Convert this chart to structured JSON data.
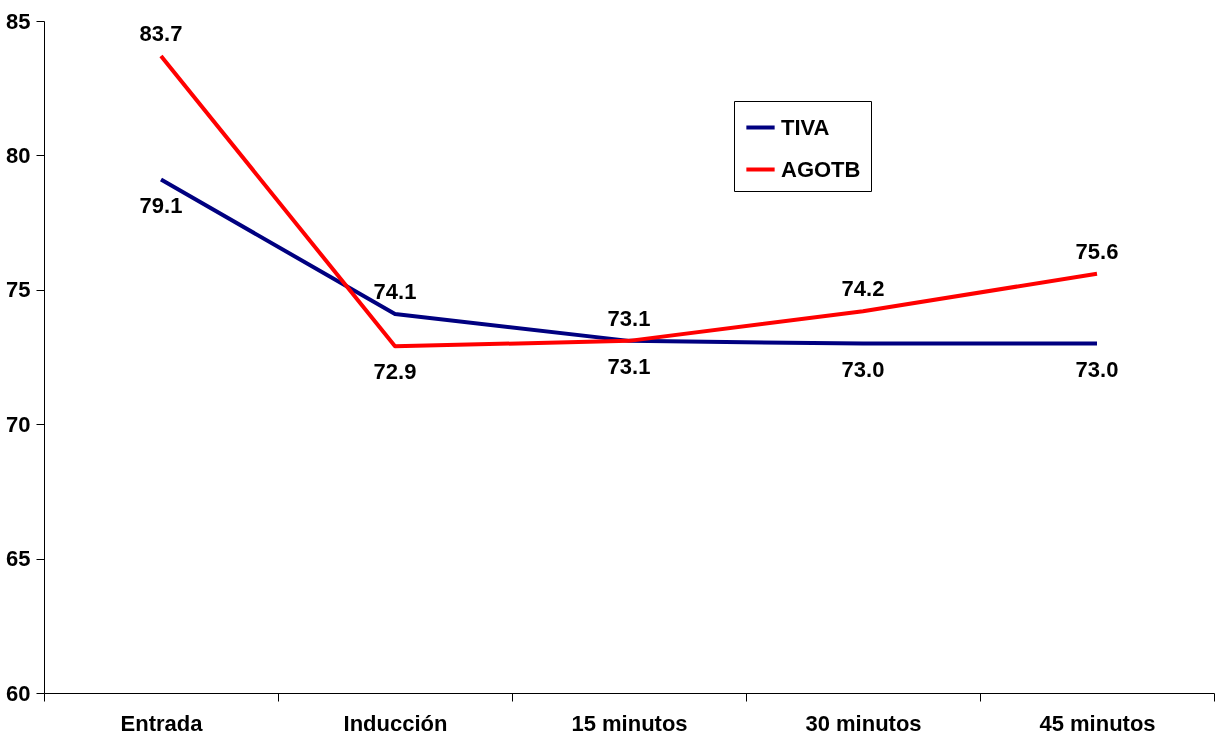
{
  "chart_data": {
    "type": "line",
    "categories": [
      "Entrada",
      "Inducción",
      "15 minutos",
      "30 minutos",
      "45 minutos"
    ],
    "series": [
      {
        "name": "TIVA",
        "color": "#000080",
        "values": [
          79.1,
          74.1,
          73.1,
          73.0,
          73.0
        ],
        "value_labels": [
          "79.1",
          "74.1",
          "73.1",
          "73.0",
          "73.0"
        ]
      },
      {
        "name": "AGOTB",
        "color": "#ff0000",
        "values": [
          83.7,
          72.9,
          73.1,
          74.2,
          75.6
        ],
        "value_labels": [
          "83.7",
          "72.9",
          "73.1",
          "74.2",
          "75.6"
        ]
      }
    ],
    "ylim": [
      60,
      85
    ],
    "yticks": [
      60,
      65,
      70,
      75,
      80,
      85
    ],
    "legend": "top right",
    "grid": false,
    "marker": "none",
    "line_style": "solid"
  }
}
